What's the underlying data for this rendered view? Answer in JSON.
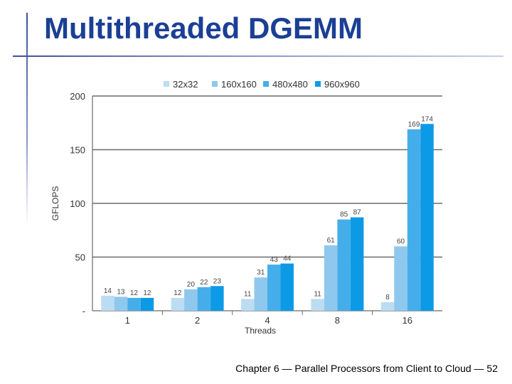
{
  "slide": {
    "title": "Multithreaded DGEMM",
    "footer": "Chapter 6 — Parallel Processors from Client to Cloud — 52"
  },
  "chart_data": {
    "type": "bar",
    "categories": [
      "1",
      "2",
      "4",
      "8",
      "16"
    ],
    "xlabel": "Threads",
    "ylabel": "GFLOPS",
    "ylim": [
      0,
      200
    ],
    "yticks": [
      "-",
      "50",
      "100",
      "150",
      "200"
    ],
    "grid": true,
    "legend": "top",
    "series": [
      {
        "name": "32x32",
        "color": "#bcdcf2",
        "values": [
          14,
          12,
          11,
          11,
          8
        ]
      },
      {
        "name": "160x160",
        "color": "#8fc8ee",
        "values": [
          13,
          20,
          31,
          61,
          60
        ]
      },
      {
        "name": "480x480",
        "color": "#45aeea",
        "values": [
          12,
          22,
          43,
          85,
          169
        ]
      },
      {
        "name": "960x960",
        "color": "#0c9ae6",
        "values": [
          12,
          23,
          44,
          87,
          174
        ]
      }
    ]
  }
}
